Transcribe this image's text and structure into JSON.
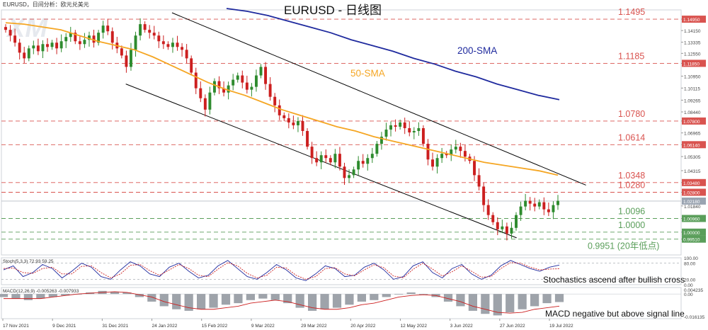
{
  "header": {
    "symbol_line": "EURUSD，日间分析：欧元兑美元",
    "title": "EURUSD - 日线图"
  },
  "watermark": "XM",
  "colors": {
    "bull": "#2e8b2e",
    "bear": "#cc1f1f",
    "sma50": "#f5a623",
    "sma200": "#1f2a9e",
    "red_level": "#d9534f",
    "green_level": "#5a9e5a",
    "channel": "#000000",
    "current_price_tag": "#9aa4b1"
  },
  "chart_data": [
    {
      "type": "candlestick",
      "name": "EURUSD Daily",
      "ylim": [
        0.984,
        1.156
      ],
      "price_ticks": [
        1.1495,
        1.1415,
        1.13335,
        1.1255,
        1.1185,
        1.1095,
        1.10115,
        1.09265,
        1.0844,
        1.078,
        1.06965,
        1.0614,
        1.05305,
        1.04315,
        1.0348,
        1.028,
        1.0184,
        1.0096,
        1.0,
        0.9951
      ],
      "x_ticks": [
        "17 Nov 2021",
        "9 Dec 2021",
        "31 Dec 2021",
        "24 Jan 2022",
        "15 Feb 2022",
        "9 Mar 2022",
        "29 Mar 2022",
        "20 Apr 2022",
        "12 May 2022",
        "3 Jun 2022",
        "27 Jun 2022",
        "19 Jul 2022"
      ],
      "current_price": 1.0218,
      "levels": [
        {
          "value": 1.1495,
          "label": "1.1495",
          "kind": "resistance"
        },
        {
          "value": 1.1185,
          "label": "1.1185",
          "kind": "resistance"
        },
        {
          "value": 1.078,
          "label": "1.0780",
          "kind": "resistance"
        },
        {
          "value": 1.0614,
          "label": "1.0614",
          "kind": "resistance"
        },
        {
          "value": 1.0348,
          "label": "1.0348",
          "kind": "resistance"
        },
        {
          "value": 1.028,
          "label": "1.0280",
          "kind": "resistance"
        },
        {
          "value": 1.0096,
          "label": "1.0096",
          "kind": "support"
        },
        {
          "value": 1.0,
          "label": "1.0000",
          "kind": "support"
        },
        {
          "value": 0.9951,
          "label": "0.9951 (20年低点)",
          "kind": "support"
        }
      ],
      "annotations": [
        {
          "text": "200-SMA"
        },
        {
          "text": "50-SMA"
        }
      ],
      "close_path": [
        1.142,
        1.138,
        1.133,
        1.126,
        1.122,
        1.129,
        1.131,
        1.127,
        1.132,
        1.13,
        1.133,
        1.129,
        1.134,
        1.137,
        1.14,
        1.134,
        1.132,
        1.135,
        1.138,
        1.133,
        1.14,
        1.145,
        1.141,
        1.133,
        1.129,
        1.124,
        1.116,
        1.128,
        1.138,
        1.146,
        1.142,
        1.14,
        1.138,
        1.134,
        1.132,
        1.13,
        1.133,
        1.13,
        1.128,
        1.122,
        1.112,
        1.101,
        1.094,
        1.086,
        1.098,
        1.106,
        1.101,
        1.098,
        1.103,
        1.107,
        1.11,
        1.105,
        1.1,
        1.102,
        1.11,
        1.116,
        1.104,
        1.095,
        1.089,
        1.082,
        1.08,
        1.077,
        1.075,
        1.078,
        1.071,
        1.06,
        1.052,
        1.049,
        1.054,
        1.052,
        1.049,
        1.055,
        1.046,
        1.038,
        1.04,
        1.044,
        1.05,
        1.048,
        1.052,
        1.055,
        1.062,
        1.067,
        1.072,
        1.075,
        1.074,
        1.077,
        1.073,
        1.07,
        1.071,
        1.073,
        1.062,
        1.051,
        1.046,
        1.052,
        1.055,
        1.054,
        1.058,
        1.06,
        1.057,
        1.053,
        1.05,
        1.04,
        1.032,
        1.019,
        1.012,
        1.007,
        1.002,
        1.004,
        0.999,
        1.003,
        1.012,
        1.018,
        1.022,
        1.02,
        1.018,
        1.021,
        1.016,
        1.014,
        1.019,
        1.022
      ],
      "sma50_path": [
        1.147,
        1.146,
        1.144,
        1.142,
        1.138,
        1.134,
        1.131,
        1.128,
        1.123,
        1.117,
        1.111,
        1.105,
        1.1,
        1.096,
        1.091,
        1.086,
        1.082,
        1.078,
        1.074,
        1.071,
        1.067,
        1.064,
        1.061,
        1.058,
        1.055,
        1.052,
        1.049,
        1.047,
        1.045,
        1.043,
        1.04
      ],
      "sma200_path": [
        1.157,
        1.155,
        1.152,
        1.148,
        1.144,
        1.14,
        1.135,
        1.131,
        1.127,
        1.122,
        1.118,
        1.113,
        1.109,
        1.104,
        1.1,
        1.096,
        1.093
      ],
      "channel": {
        "upper": [
          [
            0.251,
            1.154
          ],
          [
            0.86,
            1.033
          ]
        ],
        "lower": [
          [
            0.183,
            1.104
          ],
          [
            0.758,
            0.996
          ]
        ]
      }
    },
    {
      "type": "line",
      "name": "Stochastics",
      "label": "Stoch(5,3,3) 72.93 59.25",
      "ylim": [
        0,
        100
      ],
      "ticks": [
        "100.00",
        "80.00",
        "20.00",
        "0.00"
      ],
      "series": [
        {
          "name": "%K",
          "values": [
            55,
            70,
            30,
            45,
            75,
            60,
            25,
            50,
            80,
            65,
            30,
            20,
            55,
            85,
            70,
            40,
            30,
            65,
            80,
            50,
            25,
            35,
            70,
            90,
            60,
            30,
            20,
            45,
            75,
            55,
            25,
            15,
            40,
            70,
            60,
            30,
            35,
            65,
            80,
            55,
            20,
            30,
            70,
            85,
            45,
            25,
            60,
            75,
            40,
            20,
            35,
            70,
            90,
            75,
            60,
            50,
            65,
            72.93
          ]
        },
        {
          "name": "%D",
          "values": [
            60,
            62,
            45,
            42,
            60,
            65,
            40,
            40,
            68,
            70,
            45,
            25,
            40,
            72,
            75,
            52,
            35,
            55,
            75,
            60,
            35,
            30,
            58,
            82,
            70,
            42,
            25,
            35,
            65,
            62,
            35,
            20,
            30,
            60,
            63,
            40,
            33,
            55,
            74,
            63,
            32,
            26,
            57,
            80,
            58,
            32,
            48,
            70,
            50,
            28,
            30,
            60,
            82,
            80,
            65,
            55,
            58,
            59.25
          ]
        }
      ],
      "annotation": "Stochastics ascend after bullish cross"
    },
    {
      "type": "bar",
      "name": "MACD",
      "label": "MACD(12,26,9) -0.005263 -0.007933",
      "ylim": [
        -0.016135,
        0.004235
      ],
      "ticks": [
        "0.004235",
        "0.00",
        "-0.016135"
      ],
      "macd_values": [
        -0.002,
        -0.003,
        -0.004,
        -0.003,
        -0.002,
        -0.001,
        0.0,
        0.001,
        0.002,
        0.0015,
        0.001,
        -0.002,
        -0.005,
        -0.008,
        -0.01,
        -0.011,
        -0.01,
        -0.009,
        -0.007,
        -0.006,
        -0.004,
        -0.003,
        -0.004,
        -0.006,
        -0.009,
        -0.011,
        -0.01,
        -0.009,
        -0.007,
        -0.005,
        -0.004,
        -0.002,
        0.0,
        0.001,
        0.0,
        -0.002,
        -0.005,
        -0.008,
        -0.011,
        -0.013,
        -0.014,
        -0.012,
        -0.01,
        -0.008,
        -0.006,
        -0.005263
      ],
      "signal_values": [
        -0.003,
        -0.003,
        -0.003,
        -0.003,
        -0.002,
        -0.001,
        0.0,
        0.0005,
        0.001,
        0.0015,
        0.001,
        -0.0005,
        -0.002,
        -0.005,
        -0.007,
        -0.009,
        -0.01,
        -0.01,
        -0.009,
        -0.008,
        -0.006,
        -0.005,
        -0.004,
        -0.005,
        -0.007,
        -0.009,
        -0.01,
        -0.01,
        -0.009,
        -0.007,
        -0.006,
        -0.004,
        -0.002,
        -0.001,
        -0.0005,
        -0.001,
        -0.003,
        -0.005,
        -0.008,
        -0.01,
        -0.012,
        -0.0125,
        -0.012,
        -0.01,
        -0.009,
        -0.007933
      ],
      "annotation": "MACD negative but above signal line"
    }
  ]
}
